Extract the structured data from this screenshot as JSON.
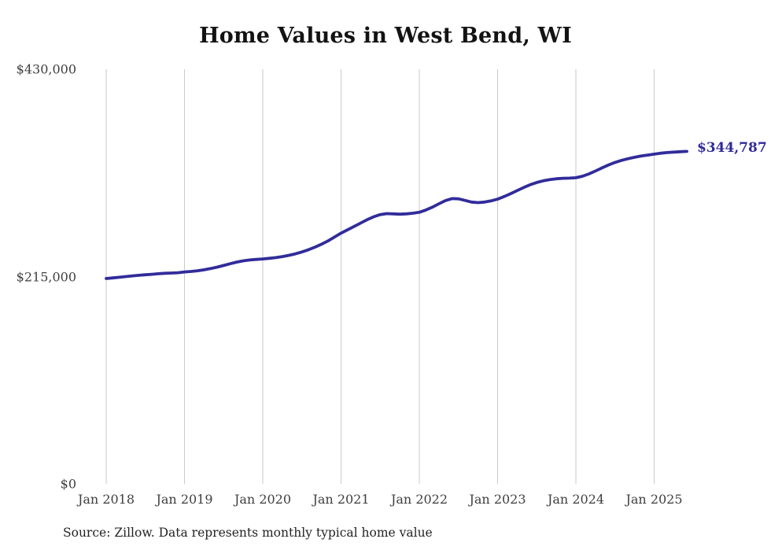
{
  "title": "Home Values in West Bend, WI",
  "source_note": "Source: Zillow. Data represents monthly typical home value",
  "end_label": "$344,787",
  "colors": {
    "line": "#312c9a",
    "grid": "#c9c9c9",
    "axis_text": "#3f3f3f",
    "title_text": "#131313",
    "end_label_text": "#2f2b99",
    "background": "#ffffff"
  },
  "chart_data": {
    "type": "line",
    "title": "Home Values in West Bend, WI",
    "xlabel": "",
    "ylabel": "",
    "x_unit": "month",
    "x_start": "Jan 2018",
    "x_end": "Jun 2025",
    "x_tick_labels": [
      "Jan 2018",
      "Jan 2019",
      "Jan 2020",
      "Jan 2021",
      "Jan 2022",
      "Jan 2023",
      "Jan 2024",
      "Jan 2025"
    ],
    "x_tick_month_indices": [
      0,
      12,
      24,
      36,
      48,
      60,
      72,
      84
    ],
    "y_ticks": [
      {
        "label": "$0",
        "value": 0
      },
      {
        "label": "$215,000",
        "value": 215000
      },
      {
        "label": "$430,000",
        "value": 430000
      }
    ],
    "ylim": [
      0,
      430000
    ],
    "grid": "vertical-only",
    "legend": "none",
    "annotation": {
      "text": "$344,787",
      "position": "line-end"
    },
    "last_value": 344787,
    "series": [
      {
        "name": "Monthly typical home value",
        "color": "#312c9a",
        "values": [
          213000,
          213600,
          214300,
          215000,
          215700,
          216300,
          216900,
          217400,
          217900,
          218400,
          218700,
          219000,
          219800,
          220300,
          221000,
          222000,
          223300,
          224800,
          226500,
          228300,
          230000,
          231300,
          232200,
          232800,
          233300,
          233900,
          234700,
          235700,
          237000,
          238600,
          240500,
          242800,
          245500,
          248500,
          252000,
          256000,
          260000,
          263500,
          267000,
          270500,
          274000,
          277000,
          279300,
          280300,
          280000,
          279700,
          280000,
          280700,
          281700,
          284000,
          287000,
          290500,
          293800,
          295900,
          295600,
          294000,
          292300,
          291700,
          292300,
          293500,
          295300,
          298000,
          301000,
          304200,
          307400,
          310300,
          312600,
          314300,
          315500,
          316400,
          316900,
          317100,
          317500,
          319000,
          321500,
          324500,
          327700,
          330800,
          333400,
          335500,
          337200,
          338700,
          340000,
          341000,
          342000,
          342900,
          343600,
          344100,
          344500,
          344787
        ]
      }
    ]
  }
}
